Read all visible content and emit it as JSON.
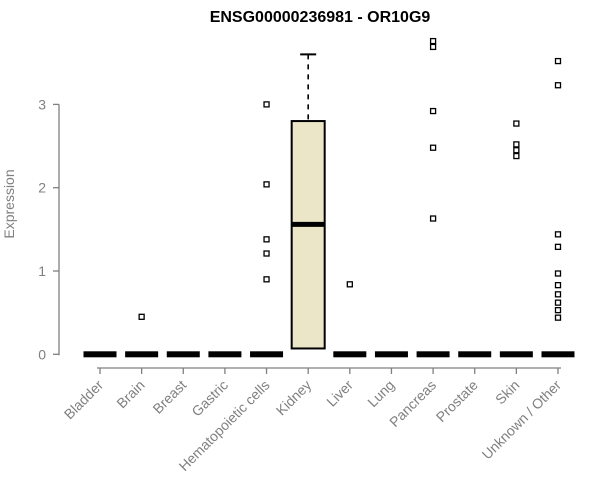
{
  "title": "ENSG00000236981 - OR10G9",
  "chart_data": {
    "type": "box",
    "title": "ENSG00000236981 - OR10G9",
    "xlabel": "",
    "ylabel": "Expression",
    "ylim": [
      0,
      3.85
    ],
    "yticks": [
      0,
      1,
      2,
      3
    ],
    "grid": false,
    "legend": "none",
    "categories": [
      "Bladder",
      "Brain",
      "Breast",
      "Gastric",
      "Hematopoietic cells",
      "Kidney",
      "Liver",
      "Lung",
      "Pancreas",
      "Prostate",
      "Skin",
      "Unknown / Other"
    ],
    "boxes": [
      {
        "category": "Bladder",
        "q1": 0,
        "median": 0,
        "q3": 0,
        "whisker_low": 0,
        "whisker_high": 0,
        "outliers": []
      },
      {
        "category": "Brain",
        "q1": 0,
        "median": 0,
        "q3": 0,
        "whisker_low": 0,
        "whisker_high": 0,
        "outliers": [
          0.45
        ]
      },
      {
        "category": "Breast",
        "q1": 0,
        "median": 0,
        "q3": 0,
        "whisker_low": 0,
        "whisker_high": 0,
        "outliers": []
      },
      {
        "category": "Gastric",
        "q1": 0,
        "median": 0,
        "q3": 0,
        "whisker_low": 0,
        "whisker_high": 0,
        "outliers": []
      },
      {
        "category": "Hematopoietic cells",
        "q1": 0,
        "median": 0,
        "q3": 0,
        "whisker_low": 0,
        "whisker_high": 0,
        "outliers": [
          3.0,
          2.04,
          1.38,
          1.21,
          0.9
        ]
      },
      {
        "category": "Kidney",
        "q1": 0.07,
        "median": 1.56,
        "q3": 2.8,
        "whisker_low": 0.07,
        "whisker_high": 3.6,
        "outliers": []
      },
      {
        "category": "Liver",
        "q1": 0,
        "median": 0,
        "q3": 0,
        "whisker_low": 0,
        "whisker_high": 0,
        "outliers": [
          0.84
        ]
      },
      {
        "category": "Lung",
        "q1": 0,
        "median": 0,
        "q3": 0,
        "whisker_low": 0,
        "whisker_high": 0,
        "outliers": []
      },
      {
        "category": "Pancreas",
        "q1": 0,
        "median": 0,
        "q3": 0,
        "whisker_low": 0,
        "whisker_high": 0,
        "outliers": [
          3.76,
          3.69,
          2.92,
          2.48,
          1.63
        ]
      },
      {
        "category": "Prostate",
        "q1": 0,
        "median": 0,
        "q3": 0,
        "whisker_low": 0,
        "whisker_high": 0,
        "outliers": []
      },
      {
        "category": "Skin",
        "q1": 0,
        "median": 0,
        "q3": 0,
        "whisker_low": 0,
        "whisker_high": 0,
        "outliers": [
          2.77,
          2.52,
          2.45,
          2.38
        ]
      },
      {
        "category": "Unknown / Other",
        "q1": 0,
        "median": 0,
        "q3": 0,
        "whisker_low": 0,
        "whisker_high": 0,
        "outliers": [
          3.52,
          3.23,
          1.44,
          1.29,
          0.97,
          0.83,
          0.72,
          0.62,
          0.53,
          0.44
        ]
      }
    ],
    "colors": {
      "box_fill": "#EBE6C8",
      "box_stroke": "#000000",
      "median": "#000000",
      "outlier_fill": "#FFFFFF",
      "outlier_stroke": "#000000",
      "axis": "#808080",
      "text": "#808080",
      "title": "#000000",
      "background": "#FFFFFF"
    }
  }
}
